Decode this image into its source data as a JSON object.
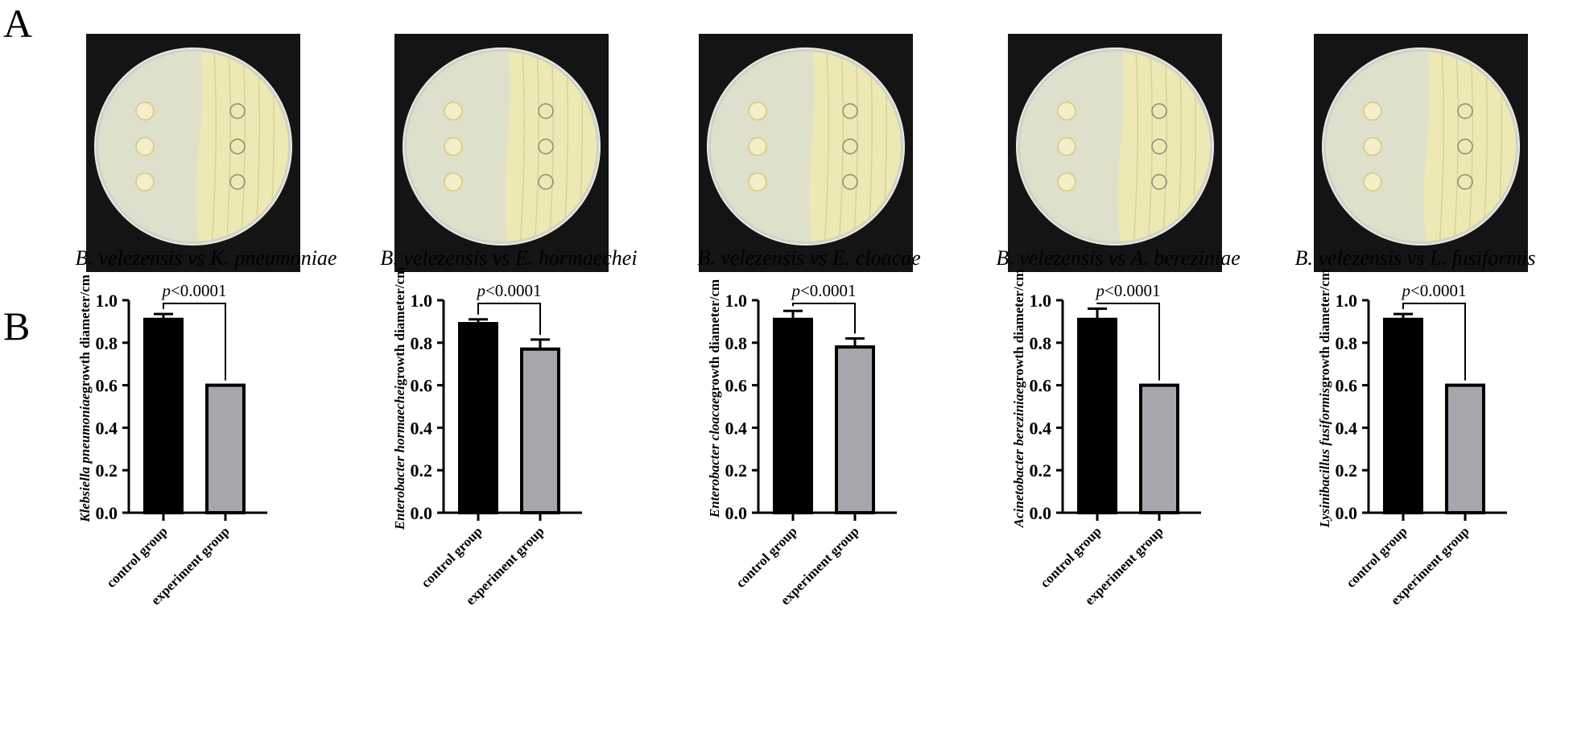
{
  "panels": {
    "a": "A",
    "b": "B"
  },
  "captions": [
    {
      "prefix": "B. velezensis",
      "vs": "vs",
      "target": "K. pneumoniae"
    },
    {
      "prefix": "B. velezensis",
      "vs": "vs",
      "target": "E. hormaechei"
    },
    {
      "prefix": "B. velezensis",
      "vs": "vs",
      "target": "E. cloacae"
    },
    {
      "prefix": "B. velezensis",
      "vs": "vs",
      "target": "A. bereziniae"
    },
    {
      "prefix": "B. velezensis",
      "vs": "vs",
      "target": "L. fusiformis"
    }
  ],
  "colors": {
    "control": "#000000",
    "experiment": "#a6a6ac",
    "photo_bg": "#141414",
    "agar_clear": "#dfe0cc",
    "lawn": "#eee8b4"
  },
  "chart_data": [
    {
      "type": "bar",
      "ylabel_species": "Klebsiella pneumoniae",
      "ylabel_suffix": "growth diameter/cm",
      "categories": [
        "control group",
        "experiment group"
      ],
      "values": [
        0.91,
        0.6
      ],
      "errors": [
        0.025,
        0
      ],
      "ylim": [
        0,
        1.0
      ],
      "yticks": [
        "0.0",
        "0.2",
        "0.4",
        "0.6",
        "0.8",
        "1.0"
      ],
      "p_prefix": "p",
      "p_value": "<0.0001"
    },
    {
      "type": "bar",
      "ylabel_species": "Enterobacter hormaechei",
      "ylabel_suffix": "growth diameter/cm",
      "categories": [
        "control group",
        "experiment group"
      ],
      "values": [
        0.89,
        0.77
      ],
      "errors": [
        0.02,
        0.045
      ],
      "ylim": [
        0,
        1.0
      ],
      "yticks": [
        "0.0",
        "0.2",
        "0.4",
        "0.6",
        "0.8",
        "1.0"
      ],
      "p_prefix": "p",
      "p_value": "<0.0001"
    },
    {
      "type": "bar",
      "ylabel_species": "Enterobacter cloacae",
      "ylabel_suffix": "growth diameter/cm",
      "categories": [
        "control group",
        "experiment group"
      ],
      "values": [
        0.91,
        0.78
      ],
      "errors": [
        0.04,
        0.04
      ],
      "ylim": [
        0,
        1.0
      ],
      "yticks": [
        "0.0",
        "0.2",
        "0.4",
        "0.6",
        "0.8",
        "1.0"
      ],
      "p_prefix": "p",
      "p_value": "<0.0001"
    },
    {
      "type": "bar",
      "ylabel_species": "Acinetobacter bereziniae",
      "ylabel_suffix": "growth diameter/cm",
      "categories": [
        "control group",
        "experiment group"
      ],
      "values": [
        0.91,
        0.6
      ],
      "errors": [
        0.05,
        0
      ],
      "ylim": [
        0,
        1.0
      ],
      "yticks": [
        "0.0",
        "0.2",
        "0.4",
        "0.6",
        "0.8",
        "1.0"
      ],
      "p_prefix": "p",
      "p_value": "<0.0001"
    },
    {
      "type": "bar",
      "ylabel_species": "Lysinibacillus fusiformis",
      "ylabel_suffix": "growth diameter/cm",
      "categories": [
        "control group",
        "experiment group"
      ],
      "values": [
        0.91,
        0.6
      ],
      "errors": [
        0.025,
        0
      ],
      "ylim": [
        0,
        1.0
      ],
      "yticks": [
        "0.0",
        "0.2",
        "0.4",
        "0.6",
        "0.8",
        "1.0"
      ],
      "p_prefix": "p",
      "p_value": "<0.0001"
    }
  ]
}
